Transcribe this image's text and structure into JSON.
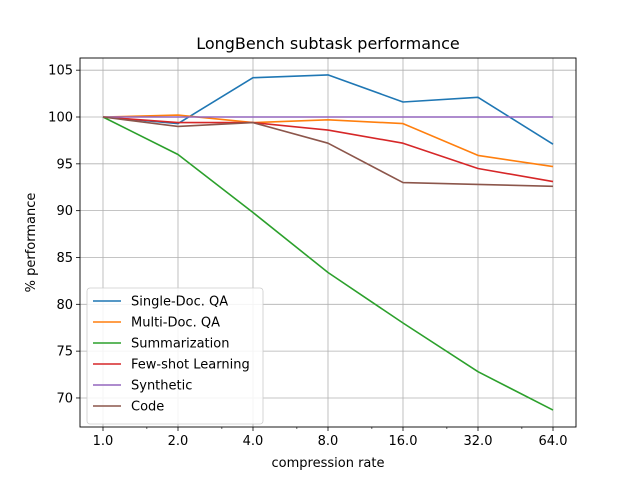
{
  "chart_data": {
    "type": "line",
    "title": "LongBench subtask performance",
    "xlabel": "compression rate",
    "ylabel": "% performance",
    "x": [
      1,
      2,
      4,
      8,
      16,
      32,
      64
    ],
    "x_scale": "log2",
    "xticks": [
      "1.0",
      "2.0",
      "4.0",
      "8.0",
      "16.0",
      "32.0",
      "64.0"
    ],
    "yticks": [
      "70",
      "75",
      "80",
      "85",
      "90",
      "95",
      "100",
      "105"
    ],
    "ylim": [
      66.9,
      106.3
    ],
    "grid": true,
    "legend_position": "lower-left",
    "series": [
      {
        "name": "Single-Doc. QA",
        "color": "#1f77b4",
        "values": [
          100.0,
          99.3,
          104.2,
          104.5,
          101.6,
          102.1,
          97.1
        ]
      },
      {
        "name": "Multi-Doc. QA",
        "color": "#ff7f0e",
        "values": [
          100.0,
          100.2,
          99.4,
          99.7,
          99.3,
          95.9,
          94.7
        ]
      },
      {
        "name": "Summarization",
        "color": "#2ca02c",
        "values": [
          100.0,
          96.0,
          89.8,
          83.4,
          78.0,
          72.8,
          68.7
        ]
      },
      {
        "name": "Few-shot Learning",
        "color": "#d62728",
        "values": [
          100.0,
          99.4,
          99.4,
          98.6,
          97.2,
          94.5,
          93.1
        ]
      },
      {
        "name": "Synthetic",
        "color": "#9467bd",
        "values": [
          100.0,
          100.0,
          100.0,
          100.0,
          100.0,
          100.0,
          100.0
        ]
      },
      {
        "name": "Code",
        "color": "#8c564b",
        "values": [
          100.0,
          99.0,
          99.4,
          97.2,
          93.0,
          92.8,
          92.6
        ]
      }
    ]
  }
}
